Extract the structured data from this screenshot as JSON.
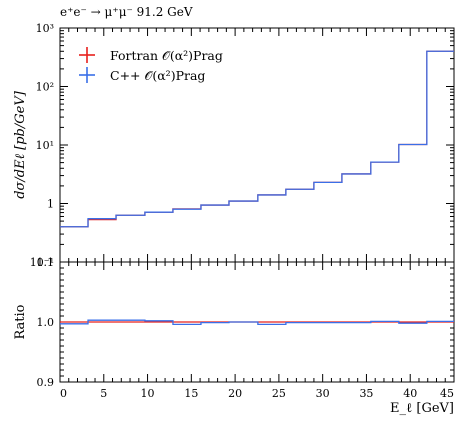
{
  "chart_data": [
    {
      "type": "line",
      "title": "e⁺e⁻ → μ⁺μ⁻ 91.2 GeV",
      "ylabel": "dσ/dEℓ [pb/GeV]",
      "xlabel": "",
      "xlim": [
        0,
        45
      ],
      "ylim": [
        0.1,
        1000
      ],
      "yscale": "log",
      "legend_position": "top-left",
      "y_tick_labels": [
        "10⁻¹",
        "1",
        "10¹",
        "10²",
        "10³"
      ],
      "y_tick_values": [
        0.1,
        1,
        10,
        100,
        1000
      ],
      "bin_edges": [
        0,
        3.2,
        6.4,
        9.7,
        12.9,
        16.1,
        19.3,
        22.6,
        25.8,
        29.0,
        32.2,
        35.5,
        38.7,
        41.9,
        45.0
      ],
      "series": [
        {
          "name": "Fortran 𝒪(α²)Prag",
          "color": "#e8201c",
          "values": [
            0.4,
            0.53,
            0.63,
            0.71,
            0.81,
            0.94,
            1.1,
            1.4,
            1.75,
            2.3,
            3.2,
            5.1,
            10.2,
            400
          ]
        },
        {
          "name": "C++ 𝒪(α²)Prag",
          "color": "#3a6fe8",
          "values": [
            0.4,
            0.55,
            0.63,
            0.71,
            0.8,
            0.94,
            1.1,
            1.4,
            1.75,
            2.3,
            3.2,
            5.1,
            10.2,
            400
          ]
        }
      ]
    },
    {
      "type": "line",
      "ylabel": "Ratio",
      "xlabel": "E_ℓ [GeV]",
      "xlim": [
        0,
        45
      ],
      "ylim": [
        0.9,
        1.1
      ],
      "x_tick_labels": [
        "0",
        "5",
        "10",
        "15",
        "20",
        "25",
        "30",
        "35",
        "40",
        "45"
      ],
      "x_tick_values": [
        0,
        5,
        10,
        15,
        20,
        25,
        30,
        35,
        40,
        45
      ],
      "y_tick_labels": [
        "0.9",
        "1.0",
        "1.1"
      ],
      "y_tick_values": [
        0.9,
        1.0,
        1.1
      ],
      "bin_edges": [
        0,
        3.2,
        6.4,
        9.7,
        12.9,
        16.1,
        19.3,
        22.6,
        25.8,
        29.0,
        32.2,
        35.5,
        38.7,
        41.9,
        45.0
      ],
      "series": [
        {
          "name": "Fortran 𝒪(α²)Prag",
          "color": "#e8201c",
          "values": [
            1.0,
            1.0,
            1.0,
            1.0,
            1.0,
            1.0,
            1.0,
            1.0,
            1.0,
            1.0,
            1.0,
            1.0,
            1.0,
            1.0
          ]
        },
        {
          "name": "C++ 𝒪(α²)Prag",
          "color": "#3a6fe8",
          "values": [
            0.997,
            1.003,
            1.003,
            1.002,
            0.996,
            0.999,
            1.0,
            0.996,
            0.999,
            0.999,
            0.999,
            1.001,
            0.998,
            1.001
          ]
        }
      ]
    }
  ]
}
